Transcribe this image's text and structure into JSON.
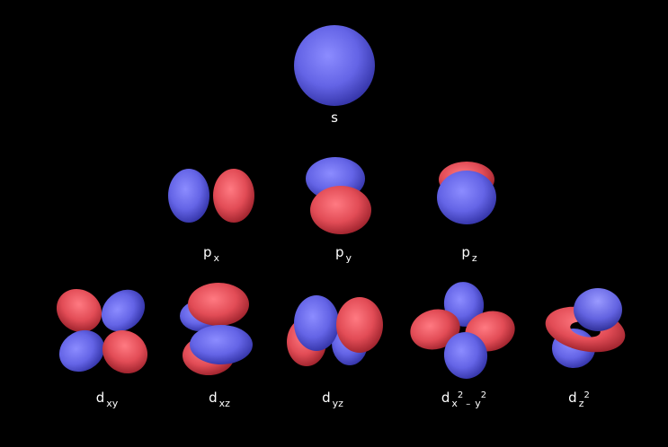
{
  "colors": {
    "background": "#000000",
    "positive_lobe": "#6262e6",
    "negative_lobe": "#e24c56",
    "label": "#ffffff"
  },
  "orbitals": {
    "s": {
      "main": "s"
    },
    "px": {
      "main": "p",
      "sub": "x"
    },
    "py": {
      "main": "p",
      "sub": "y"
    },
    "pz": {
      "main": "p",
      "sub": "z"
    },
    "dxy": {
      "main": "d",
      "sub": "xy"
    },
    "dxz": {
      "main": "d",
      "sub": "xz"
    },
    "dyz": {
      "main": "d",
      "sub": "yz"
    },
    "dx2y2": {
      "main": "d",
      "sub1": "x",
      "sup1": "2",
      "minus": "–",
      "sub2": "y",
      "sup2": "2"
    },
    "dz2": {
      "main": "d",
      "sub": "z",
      "sup": "2"
    }
  }
}
